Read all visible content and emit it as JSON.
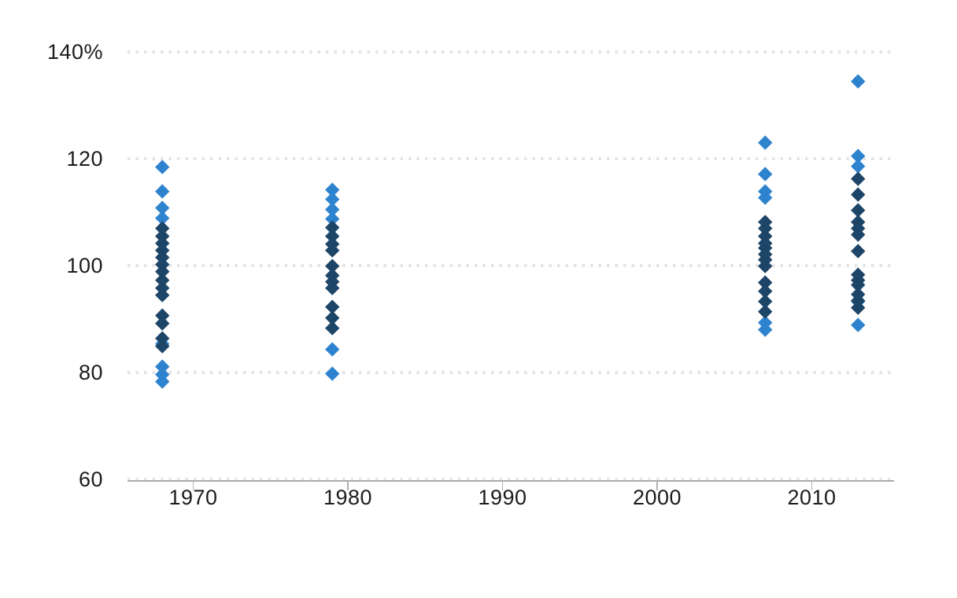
{
  "chart_data": {
    "type": "scatter",
    "marker": "diamond",
    "title": "",
    "xlabel": "",
    "ylabel": "",
    "grid_style": "dotted-horizontal",
    "legend": "none",
    "x_axis": {
      "min": 1965.8,
      "max": 2015.3,
      "ticks": [
        {
          "value": 1970,
          "label": "1970"
        },
        {
          "value": 1980,
          "label": "1980"
        },
        {
          "value": 1990,
          "label": "1990"
        },
        {
          "value": 2000,
          "label": "2000"
        },
        {
          "value": 2010,
          "label": "2010"
        }
      ]
    },
    "y_axis": {
      "min": 60,
      "max": 145,
      "gridline_values": [
        60,
        80,
        100,
        120,
        140
      ],
      "ticks": [
        {
          "value": 60,
          "label": "60"
        },
        {
          "value": 80,
          "label": "80"
        },
        {
          "value": 100,
          "label": "100"
        },
        {
          "value": 120,
          "label": "120"
        },
        {
          "value": 140,
          "label": "140%"
        }
      ]
    },
    "colors": {
      "light_blue": "#2E83CF",
      "dark_navy": "#1D4568",
      "gridline": "#E4E4E4",
      "axis_line": "#ABABAB",
      "tick": "#B0B0B0",
      "label": "#1C1C1C"
    },
    "series": [
      {
        "name": "light-blue-series",
        "color_key": "light_blue",
        "points": [
          [
            1968,
            118.5
          ],
          [
            1968,
            113.9
          ],
          [
            1968,
            110.8
          ],
          [
            1968,
            108.9
          ],
          [
            1968,
            85.4
          ],
          [
            1968,
            81.2
          ],
          [
            1968,
            79.6
          ],
          [
            1968,
            78.4
          ],
          [
            1979,
            114.3
          ],
          [
            1979,
            112.4
          ],
          [
            1979,
            110.6
          ],
          [
            1979,
            108.8
          ],
          [
            1979,
            84.4
          ],
          [
            1979,
            79.8
          ],
          [
            2007,
            123.1
          ],
          [
            2007,
            117.2
          ],
          [
            2007,
            114.0
          ],
          [
            2007,
            112.8
          ],
          [
            2007,
            89.4
          ],
          [
            2007,
            88.1
          ],
          [
            2013,
            134.5
          ],
          [
            2013,
            120.5
          ],
          [
            2013,
            118.6
          ],
          [
            2013,
            93.4
          ],
          [
            2013,
            89.0
          ]
        ]
      },
      {
        "name": "dark-navy-series",
        "color_key": "dark_navy",
        "points": [
          [
            1968,
            107.0
          ],
          [
            1968,
            105.6
          ],
          [
            1968,
            104.3
          ],
          [
            1968,
            102.9
          ],
          [
            1968,
            101.6
          ],
          [
            1968,
            100.3
          ],
          [
            1968,
            99.0
          ],
          [
            1968,
            97.3
          ],
          [
            1968,
            95.8
          ],
          [
            1968,
            94.5
          ],
          [
            1968,
            90.7
          ],
          [
            1968,
            89.2
          ],
          [
            1968,
            86.5
          ],
          [
            1968,
            85.0
          ],
          [
            1979,
            107.2
          ],
          [
            1979,
            105.6
          ],
          [
            1979,
            104.1
          ],
          [
            1979,
            102.9
          ],
          [
            1979,
            100.0
          ],
          [
            1979,
            98.2
          ],
          [
            1979,
            97.0
          ],
          [
            1979,
            95.9
          ],
          [
            1979,
            92.3
          ],
          [
            1979,
            90.3
          ],
          [
            1979,
            88.4
          ],
          [
            2007,
            108.2
          ],
          [
            2007,
            107.0
          ],
          [
            2007,
            105.6
          ],
          [
            2007,
            104.3
          ],
          [
            2007,
            103.3
          ],
          [
            2007,
            102.2
          ],
          [
            2007,
            101.1
          ],
          [
            2007,
            100.0
          ],
          [
            2007,
            96.9
          ],
          [
            2007,
            95.3
          ],
          [
            2007,
            93.3
          ],
          [
            2007,
            91.4
          ],
          [
            2013,
            116.3
          ],
          [
            2013,
            113.3
          ],
          [
            2013,
            110.4
          ],
          [
            2013,
            108.2
          ],
          [
            2013,
            107.0
          ],
          [
            2013,
            105.9
          ],
          [
            2013,
            102.8
          ],
          [
            2013,
            98.4
          ],
          [
            2013,
            97.3
          ],
          [
            2013,
            96.4
          ],
          [
            2013,
            94.6
          ],
          [
            2013,
            93.5
          ],
          [
            2013,
            92.1
          ]
        ]
      }
    ]
  }
}
